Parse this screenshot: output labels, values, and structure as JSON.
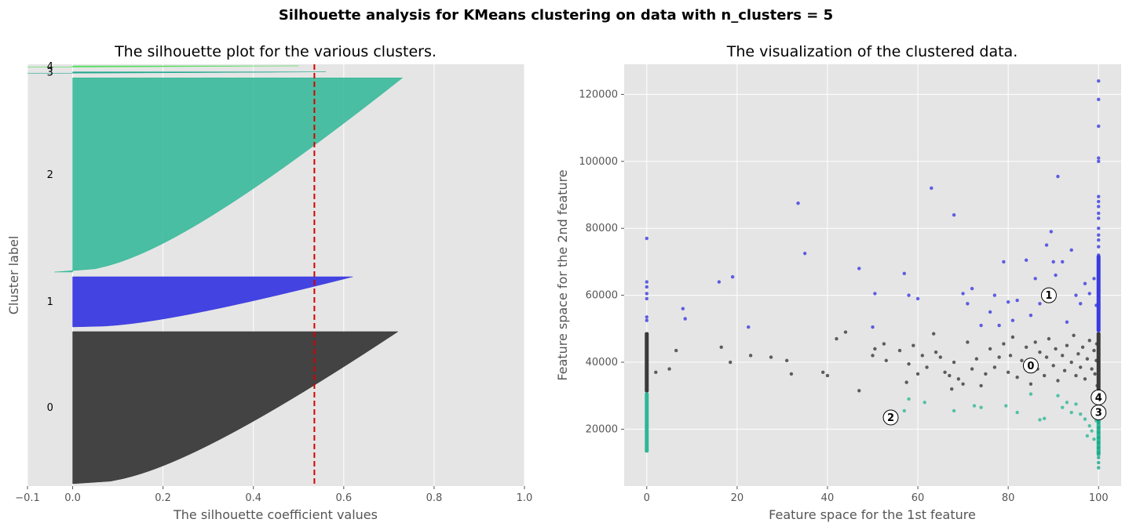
{
  "figure": {
    "suptitle": "Silhouette analysis for KMeans clustering on data with n_clusters = 5"
  },
  "colors": {
    "axes_bg": "#e5e5e5",
    "grid": "#ffffff",
    "cluster_0": "#3a3a3a",
    "cluster_1": "#3a3ae0",
    "cluster_2": "#2fb796",
    "cluster_3": "#17a589",
    "cluster_4": "#55e05f",
    "avg_line": "#d40000"
  },
  "chart_data": [
    {
      "type": "area",
      "title": "The silhouette plot for the various clusters.",
      "xlabel": "The silhouette coefficient values",
      "ylabel": "Cluster label",
      "xlim": [
        -0.1,
        1.0
      ],
      "xticks": [
        -0.1,
        0.0,
        0.2,
        0.4,
        0.6,
        0.8,
        1.0
      ],
      "xtick_labels": [
        "−0.1",
        "0.0",
        "0.2",
        "0.4",
        "0.6",
        "0.8",
        "1.0"
      ],
      "grid": true,
      "average_silhouette": 0.535,
      "clusters": [
        {
          "label": "0",
          "max_value": 0.72,
          "min_value": 0.0,
          "relative_size": 0.47,
          "color": "#3a3a3a"
        },
        {
          "label": "1",
          "max_value": 0.62,
          "min_value": 0.0,
          "relative_size": 0.155,
          "color": "#3a3ae0"
        },
        {
          "label": "2",
          "max_value": 0.73,
          "min_value": -0.04,
          "relative_size": 0.6,
          "color": "#2fb796"
        },
        {
          "label": "3",
          "max_value": 0.56,
          "min_value": -0.1,
          "relative_size": 0.004,
          "color": "#17a589"
        },
        {
          "label": "4",
          "max_value": 0.5,
          "min_value": -0.1,
          "relative_size": 0.004,
          "color": "#55e05f"
        }
      ]
    },
    {
      "type": "scatter",
      "title": "The visualization of the clustered data.",
      "xlabel": "Feature space for the 1st feature",
      "ylabel": "Feature space for the 2nd feature",
      "xlim": [
        -5,
        105
      ],
      "ylim": [
        3000,
        129000
      ],
      "xticks": [
        0,
        20,
        40,
        60,
        80,
        100
      ],
      "yticks": [
        20000,
        40000,
        60000,
        80000,
        100000,
        120000
      ],
      "grid": true,
      "centers": [
        {
          "label": "0",
          "x": 85,
          "y": 39000
        },
        {
          "label": "1",
          "x": 89,
          "y": 60000
        },
        {
          "label": "2",
          "x": 54,
          "y": 23500
        },
        {
          "label": "3",
          "x": 100,
          "y": 25000
        },
        {
          "label": "4",
          "x": 100,
          "y": 29500
        }
      ],
      "points": {
        "cluster_0": [
          [
            2,
            37000
          ],
          [
            5,
            38000
          ],
          [
            6.5,
            43500
          ],
          [
            16.5,
            44500
          ],
          [
            18.5,
            40000
          ],
          [
            23,
            42000
          ],
          [
            27.5,
            41500
          ],
          [
            31,
            40500
          ],
          [
            32,
            36500
          ],
          [
            39,
            37000
          ],
          [
            40,
            36000
          ],
          [
            42,
            47000
          ],
          [
            44,
            49000
          ],
          [
            47,
            31500
          ],
          [
            50,
            42000
          ],
          [
            50.5,
            44000
          ],
          [
            52.5,
            45500
          ],
          [
            53,
            40500
          ],
          [
            56,
            43500
          ],
          [
            57.5,
            34000
          ],
          [
            58,
            39500
          ],
          [
            59,
            45000
          ],
          [
            60,
            36500
          ],
          [
            61,
            42000
          ],
          [
            62,
            38500
          ],
          [
            63.5,
            48500
          ],
          [
            64,
            43000
          ],
          [
            65,
            41500
          ],
          [
            66,
            37000
          ],
          [
            67,
            36000
          ],
          [
            67.5,
            32000
          ],
          [
            68,
            40000
          ],
          [
            69,
            35000
          ],
          [
            70,
            33500
          ],
          [
            71,
            46000
          ],
          [
            72,
            38000
          ],
          [
            73,
            41000
          ],
          [
            74,
            33000
          ],
          [
            75,
            36500
          ],
          [
            76,
            44000
          ],
          [
            77,
            38500
          ],
          [
            78,
            41500
          ],
          [
            79,
            45500
          ],
          [
            80,
            37000
          ],
          [
            80.5,
            42000
          ],
          [
            81,
            47500
          ],
          [
            82,
            35500
          ],
          [
            83,
            40500
          ],
          [
            84,
            44500
          ],
          [
            85,
            33500
          ],
          [
            86,
            46000
          ],
          [
            86.5,
            38000
          ],
          [
            87,
            43000
          ],
          [
            88,
            36000
          ],
          [
            88.5,
            41500
          ],
          [
            89,
            47000
          ],
          [
            90,
            39000
          ],
          [
            90.5,
            44000
          ],
          [
            91,
            34500
          ],
          [
            92,
            42000
          ],
          [
            92.5,
            37500
          ],
          [
            93,
            45000
          ],
          [
            94,
            40000
          ],
          [
            94.5,
            48000
          ],
          [
            95,
            36000
          ],
          [
            95.5,
            42500
          ],
          [
            96,
            38500
          ],
          [
            96.5,
            44500
          ],
          [
            97,
            35000
          ],
          [
            97.5,
            41000
          ],
          [
            98,
            46500
          ],
          [
            98.5,
            38000
          ],
          [
            99,
            43500
          ],
          [
            99.2,
            36500
          ],
          [
            99.5,
            40500
          ],
          [
            99.6,
            45500
          ],
          [
            99.7,
            33000
          ]
        ],
        "cluster_1": [
          [
            0,
            77000
          ],
          [
            0,
            64000
          ],
          [
            0,
            62500
          ],
          [
            0,
            60500
          ],
          [
            0,
            59000
          ],
          [
            0,
            53500
          ],
          [
            0,
            52500
          ],
          [
            8,
            56000
          ],
          [
            8.5,
            53000
          ],
          [
            16,
            64000
          ],
          [
            19,
            65500
          ],
          [
            22.5,
            50500
          ],
          [
            33.5,
            87500
          ],
          [
            35,
            72500
          ],
          [
            47,
            68000
          ],
          [
            50.5,
            60500
          ],
          [
            50,
            50500
          ],
          [
            57,
            66500
          ],
          [
            58,
            60000
          ],
          [
            60,
            59000
          ],
          [
            63,
            92000
          ],
          [
            68,
            84000
          ],
          [
            70,
            60500
          ],
          [
            71,
            57500
          ],
          [
            72,
            62000
          ],
          [
            74,
            51000
          ],
          [
            76,
            55000
          ],
          [
            77,
            60000
          ],
          [
            78,
            51000
          ],
          [
            79,
            70000
          ],
          [
            80,
            58000
          ],
          [
            81,
            52500
          ],
          [
            82,
            58500
          ],
          [
            84,
            70500
          ],
          [
            85,
            54000
          ],
          [
            86,
            65000
          ],
          [
            87,
            57500
          ],
          [
            88.5,
            75000
          ],
          [
            89.5,
            79000
          ],
          [
            90,
            70000
          ],
          [
            90.5,
            66000
          ],
          [
            91,
            95500
          ],
          [
            92,
            70000
          ],
          [
            93,
            52000
          ],
          [
            94,
            73500
          ],
          [
            95,
            60000
          ],
          [
            96,
            57500
          ],
          [
            97,
            63500
          ],
          [
            98,
            60500
          ],
          [
            99,
            65000
          ],
          [
            99.5,
            57000
          ],
          [
            100,
            124000
          ],
          [
            100,
            118500
          ],
          [
            100,
            110500
          ],
          [
            100,
            101000
          ],
          [
            100,
            100000
          ],
          [
            100,
            89500
          ],
          [
            100,
            88000
          ],
          [
            100,
            86500
          ],
          [
            100,
            84500
          ],
          [
            100,
            83000
          ],
          [
            100,
            80000
          ],
          [
            100,
            78000
          ],
          [
            100,
            76500
          ],
          [
            100,
            74500
          ],
          [
            100,
            72000
          ],
          [
            100,
            70500
          ],
          [
            100,
            69000
          ],
          [
            100,
            67000
          ],
          [
            100,
            65500
          ],
          [
            100,
            63000
          ],
          [
            100,
            61500
          ],
          [
            100,
            59500
          ],
          [
            100,
            57500
          ],
          [
            100,
            55500
          ],
          [
            100,
            54000
          ],
          [
            100,
            52500
          ],
          [
            100,
            51000
          ],
          [
            100,
            50000
          ]
        ],
        "cluster_2": [
          [
            57,
            25500
          ],
          [
            58,
            29000
          ],
          [
            61.5,
            28000
          ],
          [
            68,
            25500
          ],
          [
            72.5,
            27000
          ],
          [
            74,
            26500
          ],
          [
            79.5,
            27000
          ],
          [
            82,
            25000
          ],
          [
            85,
            30500
          ],
          [
            87,
            22800
          ],
          [
            88,
            23200
          ],
          [
            91,
            30000
          ],
          [
            92,
            26500
          ],
          [
            93,
            28000
          ],
          [
            94,
            25000
          ],
          [
            95,
            27500
          ],
          [
            96,
            24500
          ],
          [
            97,
            23000
          ],
          [
            97.5,
            18000
          ],
          [
            98,
            21000
          ],
          [
            98.5,
            19500
          ],
          [
            99,
            17000
          ],
          [
            99.5,
            22500
          ]
        ],
        "cluster_3": [
          [
            100,
            8500
          ],
          [
            100,
            10000
          ],
          [
            100,
            11500
          ],
          [
            100,
            13000
          ],
          [
            100,
            14500
          ],
          [
            100,
            16000
          ],
          [
            100,
            17500
          ],
          [
            100,
            19000
          ],
          [
            100,
            20500
          ],
          [
            100,
            22000
          ],
          [
            100,
            23500
          ],
          [
            100,
            25000
          ],
          [
            100,
            26500
          ],
          [
            100,
            28000
          ]
        ],
        "cluster_4": [
          [
            100,
            29000
          ],
          [
            100,
            30500
          ]
        ]
      },
      "vertical_strips": [
        {
          "cluster": "cluster_0",
          "x": 0,
          "y_from": 31000,
          "y_to": 49000
        },
        {
          "cluster": "cluster_2",
          "x": 0,
          "y_from": 13000,
          "y_to": 31000
        },
        {
          "cluster": "cluster_0",
          "x": 100,
          "y_from": 31000,
          "y_to": 49000
        },
        {
          "cluster": "cluster_2",
          "x": 100,
          "y_from": 12000,
          "y_to": 28500
        },
        {
          "cluster": "cluster_1",
          "x": 100,
          "y_from": 49000,
          "y_to": 72000
        }
      ]
    }
  ]
}
